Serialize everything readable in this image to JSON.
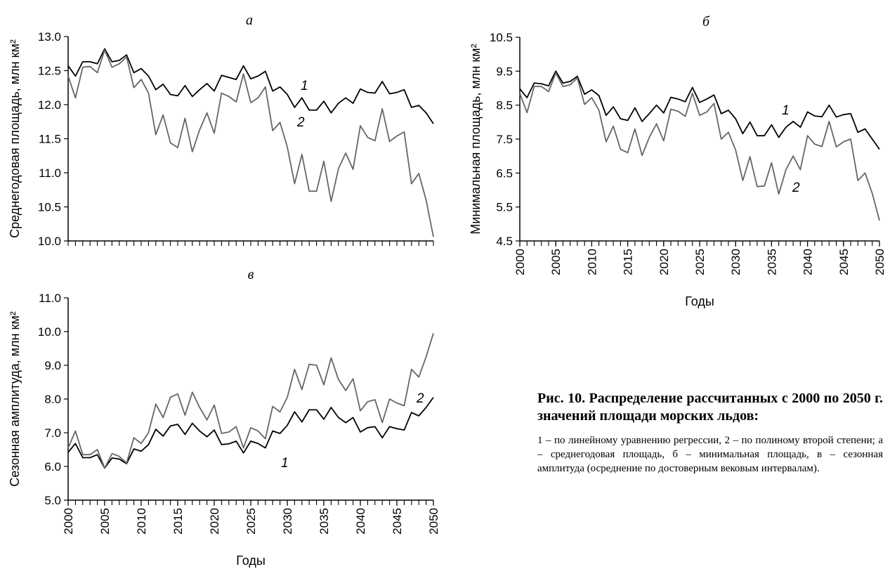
{
  "chart_data": [
    {
      "type": "line",
      "title": "а",
      "y_label": "Среднегодовая площадь, млн км²",
      "x": [
        2000,
        2001,
        2002,
        2003,
        2004,
        2005,
        2006,
        2007,
        2008,
        2009,
        2010,
        2011,
        2012,
        2013,
        2014,
        2015,
        2016,
        2017,
        2018,
        2019,
        2020,
        2021,
        2022,
        2023,
        2024,
        2025,
        2026,
        2027,
        2028,
        2029,
        2030,
        2031,
        2032,
        2033,
        2034,
        2035,
        2036,
        2037,
        2038,
        2039,
        2040,
        2041,
        2042,
        2043,
        2044,
        2045,
        2046,
        2047,
        2048,
        2049,
        2050
      ],
      "xlim": [
        2000,
        2050
      ],
      "ylim": [
        10.0,
        13.0
      ],
      "yticks": [
        {
          "value": 10,
          "label": "10.0"
        },
        {
          "value": 10.5,
          "label": "10.5"
        },
        {
          "value": 11,
          "label": "11.0"
        },
        {
          "value": 11.5,
          "label": "11.5"
        },
        {
          "value": 12,
          "label": "12.0"
        },
        {
          "value": 12.5,
          "label": "12.5"
        },
        {
          "value": 13,
          "label": "13.0"
        }
      ],
      "series": [
        {
          "name": "1",
          "color": "#000000",
          "values": [
            12.57,
            12.42,
            12.63,
            12.63,
            12.6,
            12.82,
            12.63,
            12.65,
            12.73,
            12.47,
            12.53,
            12.42,
            12.22,
            12.3,
            12.15,
            12.13,
            12.28,
            12.12,
            12.22,
            12.31,
            12.2,
            12.43,
            12.4,
            12.37,
            12.57,
            12.38,
            12.42,
            12.49,
            12.2,
            12.26,
            12.15,
            11.96,
            12.1,
            11.92,
            11.92,
            12.05,
            11.88,
            12.02,
            12.1,
            12.02,
            12.23,
            12.18,
            12.17,
            12.34,
            12.16,
            12.18,
            12.22,
            11.96,
            11.99,
            11.88,
            11.72
          ]
        },
        {
          "name": "2",
          "color": "#666666",
          "values": [
            12.42,
            12.1,
            12.55,
            12.56,
            12.47,
            12.8,
            12.55,
            12.6,
            12.7,
            12.25,
            12.37,
            12.17,
            11.56,
            11.85,
            11.44,
            11.37,
            11.8,
            11.31,
            11.63,
            11.88,
            11.58,
            12.17,
            12.12,
            12.04,
            12.45,
            12.03,
            12.1,
            12.26,
            11.62,
            11.74,
            11.38,
            10.84,
            11.27,
            10.73,
            10.73,
            11.17,
            10.58,
            11.06,
            11.29,
            11.05,
            11.69,
            11.52,
            11.47,
            11.94,
            11.46,
            11.54,
            11.6,
            10.84,
            10.99,
            10.6,
            10.06
          ]
        }
      ]
    },
    {
      "type": "line",
      "title": "б",
      "y_label": "Минимальная площадь, млн км²",
      "x_label": "Годы",
      "x": [
        2000,
        2001,
        2002,
        2003,
        2004,
        2005,
        2006,
        2007,
        2008,
        2009,
        2010,
        2011,
        2012,
        2013,
        2014,
        2015,
        2016,
        2017,
        2018,
        2019,
        2020,
        2021,
        2022,
        2023,
        2024,
        2025,
        2026,
        2027,
        2028,
        2029,
        2030,
        2031,
        2032,
        2033,
        2034,
        2035,
        2036,
        2037,
        2038,
        2039,
        2040,
        2041,
        2042,
        2043,
        2044,
        2045,
        2046,
        2047,
        2048,
        2049,
        2050
      ],
      "xlim": [
        2000,
        2050
      ],
      "xticks": [
        2000,
        2005,
        2010,
        2015,
        2020,
        2025,
        2030,
        2035,
        2040,
        2045,
        2050
      ],
      "ylim": [
        4.5,
        10.5
      ],
      "yticks": [
        4.5,
        5.5,
        6.5,
        7.5,
        8.5,
        9.5,
        10.5
      ],
      "series": [
        {
          "name": "1",
          "color": "#000000",
          "values": [
            8.98,
            8.72,
            9.15,
            9.13,
            9.07,
            9.5,
            9.15,
            9.2,
            9.35,
            8.82,
            8.95,
            8.78,
            8.2,
            8.45,
            8.1,
            8.05,
            8.42,
            8.02,
            8.25,
            8.5,
            8.27,
            8.73,
            8.68,
            8.6,
            9.02,
            8.58,
            8.68,
            8.8,
            8.25,
            8.35,
            8.1,
            7.66,
            8.0,
            7.6,
            7.6,
            7.92,
            7.55,
            7.85,
            8.02,
            7.85,
            8.3,
            8.18,
            8.16,
            8.5,
            8.15,
            8.22,
            8.25,
            7.7,
            7.8,
            7.5,
            7.2
          ]
        },
        {
          "name": "2",
          "color": "#666666",
          "values": [
            8.85,
            8.28,
            9.05,
            9.05,
            8.9,
            9.45,
            9.05,
            9.1,
            9.3,
            8.52,
            8.72,
            8.35,
            7.42,
            7.88,
            7.2,
            7.1,
            7.8,
            7.02,
            7.55,
            7.95,
            7.45,
            8.38,
            8.32,
            8.17,
            8.85,
            8.2,
            8.3,
            8.55,
            7.5,
            7.7,
            7.18,
            6.28,
            6.98,
            6.1,
            6.12,
            6.8,
            5.88,
            6.6,
            7.0,
            6.6,
            7.6,
            7.35,
            7.28,
            8.02,
            7.27,
            7.42,
            7.5,
            6.28,
            6.5,
            5.9,
            5.1
          ]
        }
      ]
    },
    {
      "type": "line",
      "title": "в",
      "y_label": "Сезонная амплитуда, млн км²",
      "x_label": "Годы",
      "x": [
        2000,
        2001,
        2002,
        2003,
        2004,
        2005,
        2006,
        2007,
        2008,
        2009,
        2010,
        2011,
        2012,
        2013,
        2014,
        2015,
        2016,
        2017,
        2018,
        2019,
        2020,
        2021,
        2022,
        2023,
        2024,
        2025,
        2026,
        2027,
        2028,
        2029,
        2030,
        2031,
        2032,
        2033,
        2034,
        2035,
        2036,
        2037,
        2038,
        2039,
        2040,
        2041,
        2042,
        2043,
        2044,
        2045,
        2046,
        2047,
        2048,
        2049,
        2050
      ],
      "xlim": [
        2000,
        2050
      ],
      "xticks": [
        2000,
        2005,
        2010,
        2015,
        2020,
        2025,
        2030,
        2035,
        2040,
        2045,
        2050
      ],
      "ylim": [
        5.0,
        11.0
      ],
      "yticks": [
        {
          "value": 5,
          "label": "5.0"
        },
        {
          "value": 6,
          "label": "6.0"
        },
        {
          "value": 7,
          "label": "7.0"
        },
        {
          "value": 8,
          "label": "8.0"
        },
        {
          "value": 9,
          "label": "9.0"
        },
        {
          "value": 10,
          "label": "10.0"
        },
        {
          "value": 11,
          "label": "11.0"
        }
      ],
      "series": [
        {
          "name": "1",
          "color": "#000000",
          "values": [
            6.42,
            6.68,
            6.26,
            6.26,
            6.35,
            5.95,
            6.25,
            6.22,
            6.08,
            6.52,
            6.45,
            6.65,
            7.1,
            6.9,
            7.2,
            7.25,
            6.95,
            7.28,
            7.05,
            6.88,
            7.08,
            6.65,
            6.67,
            6.75,
            6.4,
            6.75,
            6.68,
            6.55,
            7.05,
            6.98,
            7.22,
            7.62,
            7.32,
            7.68,
            7.68,
            7.4,
            7.75,
            7.45,
            7.3,
            7.45,
            7.02,
            7.15,
            7.18,
            6.85,
            7.18,
            7.12,
            7.08,
            7.6,
            7.5,
            7.75,
            8.05
          ]
        },
        {
          "name": "2",
          "color": "#666666",
          "values": [
            6.55,
            7.05,
            6.35,
            6.35,
            6.5,
            5.95,
            6.38,
            6.3,
            6.1,
            6.85,
            6.68,
            7.0,
            7.85,
            7.45,
            8.05,
            8.15,
            7.52,
            8.2,
            7.75,
            7.38,
            7.82,
            6.98,
            7.02,
            7.18,
            6.55,
            7.15,
            7.05,
            6.82,
            7.78,
            7.62,
            8.05,
            8.88,
            8.28,
            9.03,
            9.0,
            8.42,
            9.22,
            8.58,
            8.25,
            8.6,
            7.65,
            7.92,
            7.98,
            7.3,
            8.0,
            7.88,
            7.8,
            8.88,
            8.65,
            9.25,
            9.95
          ]
        }
      ]
    }
  ],
  "caption": {
    "title": "Рис. 10. Распределение рассчитанных с 2000 по 2050 г. значений площади морских льдов:",
    "text": "1 – по линейному уравнению регрессии, 2 – по полиному второй степени; а – среднегодовая площадь, б – минимальная площадь, в – сезонная амплитуда (осреднение по достоверным вековым интервалам)."
  }
}
